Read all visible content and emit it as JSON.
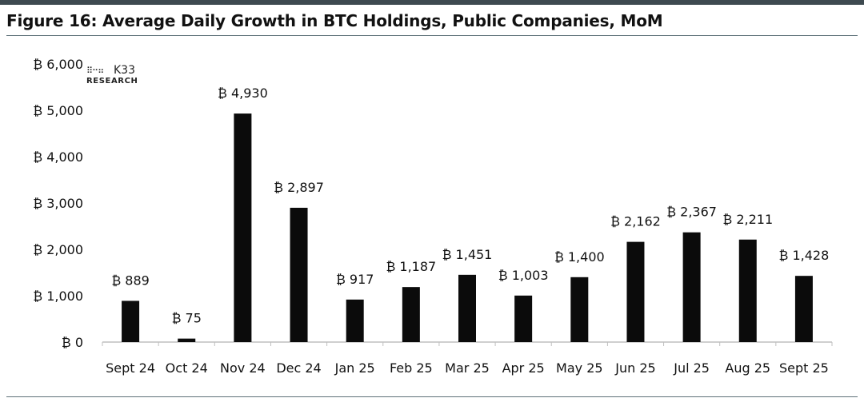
{
  "title": "Figure 16: Average Daily Growth in BTC Holdings, Public Companies, MoM",
  "logo": {
    "brand": "K33",
    "sub": "RESEARCH",
    "dots": "⠿⠒⠶"
  },
  "colors": {
    "bar": "#0b0b0b",
    "axis": "#bfbfbf",
    "rule": "#5d7078",
    "text": "#111111"
  },
  "chart_data": {
    "type": "bar",
    "title": "Figure 16: Average Daily Growth in BTC Holdings, Public Companies, MoM",
    "xlabel": "",
    "ylabel": "",
    "categories": [
      "Sept 24",
      "Oct 24",
      "Nov 24",
      "Dec 24",
      "Jan 25",
      "Feb 25",
      "Mar 25",
      "Apr 25",
      "May 25",
      "Jun 25",
      "Jul 25",
      "Aug 25",
      "Sept 25"
    ],
    "values": [
      889,
      75,
      4930,
      2897,
      917,
      1187,
      1451,
      1003,
      1400,
      2162,
      2367,
      2211,
      1428
    ],
    "data_labels": [
      "₿ 889",
      "₿ 75",
      "₿ 4,930",
      "₿ 2,897",
      "₿ 917",
      "₿ 1,187",
      "₿ 1,451",
      "₿ 1,003",
      "₿ 1,400",
      "₿ 2,162",
      "₿ 2,367",
      "₿ 2,211",
      "₿ 1,428"
    ],
    "ylim": [
      0,
      6000
    ],
    "yticks": [
      0,
      1000,
      2000,
      3000,
      4000,
      5000,
      6000
    ],
    "ytick_labels": [
      "₿ 0",
      "₿ 1,000",
      "₿ 2,000",
      "₿ 3,000",
      "₿ 4,000",
      "₿ 5,000",
      "₿ 6,000"
    ],
    "grid": false,
    "legend": "none"
  }
}
